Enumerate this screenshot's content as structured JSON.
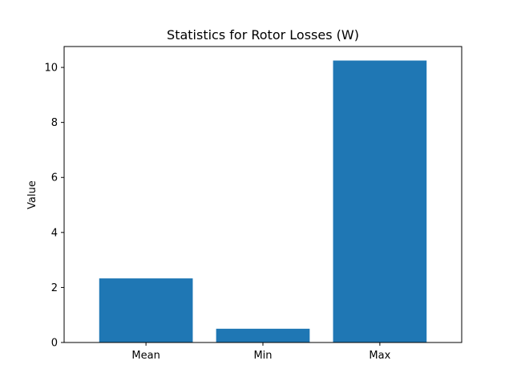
{
  "chart_data": {
    "type": "bar",
    "title": "Statistics for Rotor Losses (W)",
    "xlabel": "",
    "ylabel": "Value",
    "categories": [
      "Mean",
      "Min",
      "Max"
    ],
    "values": [
      2.33,
      0.5,
      10.25
    ],
    "ylim": [
      0,
      10.76
    ],
    "yticks": [
      0,
      2,
      4,
      6,
      8,
      10
    ],
    "grid": false,
    "legend": "none",
    "bar_color": "#1f77b4"
  }
}
